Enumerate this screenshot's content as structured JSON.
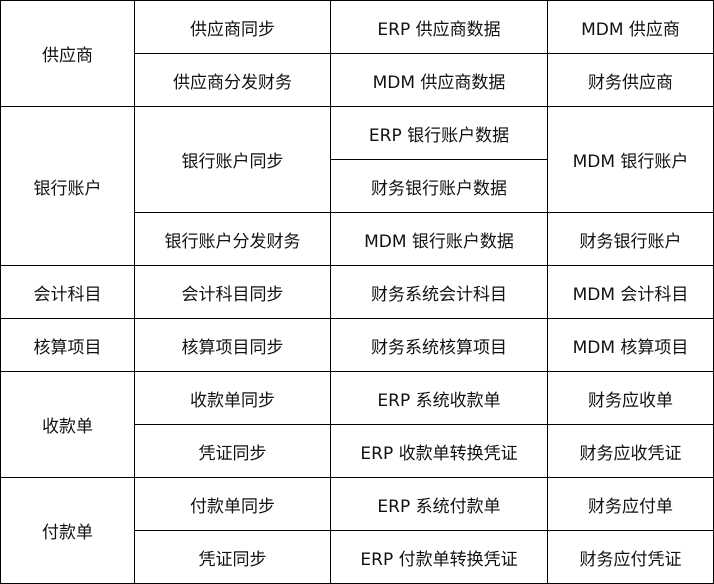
{
  "rows": [
    {
      "category": "供应商",
      "sync": "供应商同步",
      "source": "ERP 供应商数据",
      "target": "MDM 供应商"
    },
    {
      "sync": "供应商分发财务",
      "source": "MDM 供应商数据",
      "target": "财务供应商"
    },
    {
      "category": "银行账户",
      "sync": "银行账户同步",
      "source": "ERP 银行账户数据",
      "target": "MDM 银行账户"
    },
    {
      "source": "财务银行账户数据"
    },
    {
      "sync": "银行账户分发财务",
      "source": "MDM 银行账户数据",
      "target": "财务银行账户"
    },
    {
      "category": "会计科目",
      "sync": "会计科目同步",
      "source": "财务系统会计科目",
      "target": "MDM 会计科目"
    },
    {
      "category": "核算项目",
      "sync": "核算项目同步",
      "source": "财务系统核算项目",
      "target": "MDM 核算项目"
    },
    {
      "category": "收款单",
      "sync": "收款单同步",
      "source": "ERP 系统收款单",
      "target": "财务应收单"
    },
    {
      "sync": "凭证同步",
      "source": "ERP 收款单转换凭证",
      "target": "财务应收凭证"
    },
    {
      "category": "付款单",
      "sync": "付款单同步",
      "source": "ERP 系统付款单",
      "target": "财务应付单"
    },
    {
      "sync": "凭证同步",
      "source": "ERP 付款单转换凭证",
      "target": "财务应付凭证"
    }
  ]
}
